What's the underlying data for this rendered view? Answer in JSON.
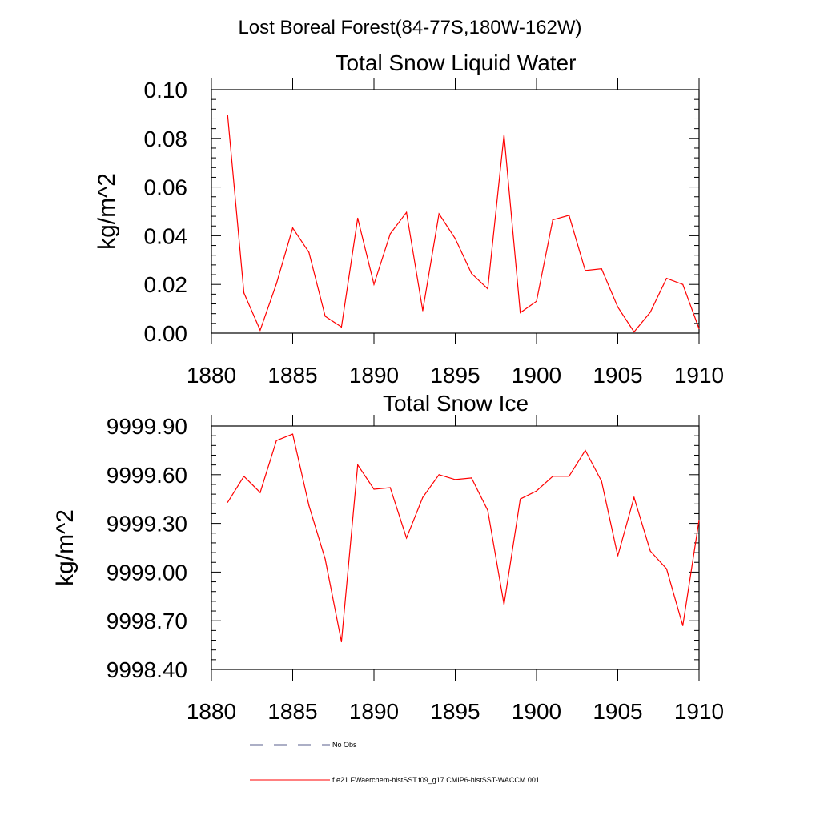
{
  "figure_title": "Lost Boreal Forest(84-77S,180W-162W)",
  "legend": {
    "no_obs_label": "No Obs",
    "model_label": "f.e21.FWaerchem-histSST.f09_g17.CMIP6-histSST-WACCM.001",
    "no_obs_color": "#5a5f8c",
    "model_color": "#ff0000"
  },
  "chart_data": [
    {
      "type": "line",
      "title": "Total Snow Liquid Water",
      "xlabel": "",
      "ylabel": "kg/m^2",
      "xlim": [
        1880,
        1910
      ],
      "ylim": [
        0.0,
        0.1
      ],
      "x_ticks": [
        "1880",
        "1885",
        "1890",
        "1895",
        "1900",
        "1905",
        "1910"
      ],
      "y_ticks": [
        "0.00",
        "0.02",
        "0.04",
        "0.06",
        "0.08",
        "0.10"
      ],
      "grid": false,
      "series": [
        {
          "color": "#ff0000",
          "x": [
            1881,
            1882,
            1883,
            1884,
            1885,
            1886,
            1887,
            1888,
            1889,
            1890,
            1891,
            1892,
            1893,
            1894,
            1895,
            1896,
            1897,
            1898,
            1899,
            1900,
            1901,
            1902,
            1903,
            1904,
            1905,
            1906,
            1907,
            1908,
            1909,
            1910
          ],
          "y": [
            0.0895,
            0.0165,
            0.0012,
            0.0203,
            0.0432,
            0.0332,
            0.0069,
            0.0025,
            0.0472,
            0.02,
            0.0408,
            0.0496,
            0.0092,
            0.049,
            0.0388,
            0.0245,
            0.0182,
            0.0815,
            0.0084,
            0.0131,
            0.0465,
            0.0484,
            0.0257,
            0.0264,
            0.0107,
            0.0005,
            0.0086,
            0.0225,
            0.02,
            0.0018
          ]
        }
      ]
    },
    {
      "type": "line",
      "title": "Total Snow Ice",
      "xlabel": "",
      "ylabel": "kg/m^2",
      "xlim": [
        1880,
        1910
      ],
      "ylim": [
        9998.4,
        9999.9
      ],
      "x_ticks": [
        "1880",
        "1885",
        "1890",
        "1895",
        "1900",
        "1905",
        "1910"
      ],
      "y_ticks": [
        "9998.40",
        "9998.70",
        "9999.00",
        "9999.30",
        "9999.60",
        "9999.90"
      ],
      "grid": false,
      "series": [
        {
          "color": "#ff0000",
          "x": [
            1881,
            1882,
            1883,
            1884,
            1885,
            1886,
            1887,
            1888,
            1889,
            1890,
            1891,
            1892,
            1893,
            1894,
            1895,
            1896,
            1897,
            1898,
            1899,
            1900,
            1901,
            1902,
            1903,
            1904,
            1905,
            1906,
            1907,
            1908,
            1909,
            1910
          ],
          "y": [
            9999.43,
            9999.59,
            9999.49,
            9999.81,
            9999.85,
            9999.41,
            9999.08,
            9998.57,
            9999.66,
            9999.51,
            9999.52,
            9999.21,
            9999.46,
            9999.6,
            9999.57,
            9999.58,
            9999.38,
            9998.8,
            9999.45,
            9999.5,
            9999.59,
            9999.59,
            9999.75,
            9999.56,
            9999.1,
            9999.46,
            9999.13,
            9999.02,
            9998.67,
            9999.32
          ]
        }
      ]
    }
  ]
}
